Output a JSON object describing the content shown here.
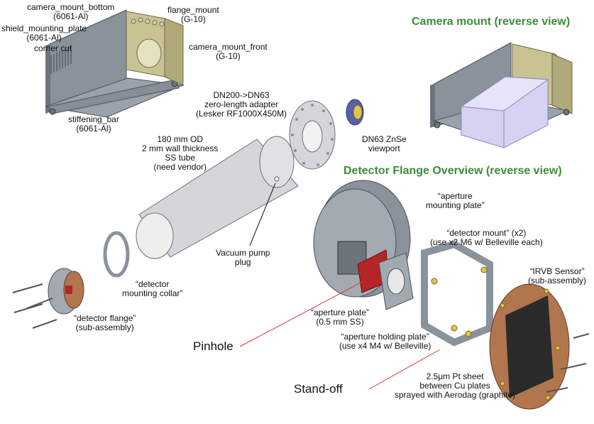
{
  "headings": {
    "camera_mount": "Camera mount (reverse view)",
    "detector_flange": "Detector Flange Overview (reverse view)"
  },
  "labels": {
    "camera_mount_bottom": [
      "camera_mount_bottom",
      "(6061-Al)"
    ],
    "flange_mount": [
      "flange_mount",
      "(G-10)"
    ],
    "shield_mounting_plate": [
      "shield_mounting_plate",
      "(6061-Al)"
    ],
    "corner_cut": [
      "corner cut"
    ],
    "camera_mount_front": [
      "camera_mount_front",
      "(G-10)"
    ],
    "stiffening_bar": [
      "stiffening_bar",
      "(6061-Al)"
    ],
    "adapter": [
      "DN200->DN63",
      "zero-length adapter",
      "(Lesker RF1000X450M)"
    ],
    "viewport": [
      "DN63 ZnSe",
      "viewport"
    ],
    "tube": [
      "180 mm OD",
      "2 mm wall thickness",
      "SS tube",
      "(need vendor)"
    ],
    "pump_plug": [
      "Vacuum pump",
      "plug"
    ],
    "mounting_collar": [
      "“detector",
      "mounting collar”"
    ],
    "detector_flange": [
      "“detector flange”",
      "(sub-assembly)"
    ],
    "aperture_mounting_plate": [
      "“aperture",
      "mounting plate”"
    ],
    "detector_mount": [
      "“detector mount” (x2)",
      "(use x2 M6 w/ Belleville each)"
    ],
    "irvb_sensor": [
      "“IRVB Sensor”",
      "(sub-assembly)"
    ],
    "aperture_plate": [
      "“aperture plate”",
      "(0.5 mm SS)"
    ],
    "aperture_holding_plate": [
      "“aperture holding plate”",
      "(use x4 M4 w/ Belleville)"
    ],
    "pt_sheet": [
      "2.5μm Pt sheet",
      "between Cu plates",
      "sprayed with Aerodag (graphite)"
    ]
  },
  "callouts": {
    "pinhole": "Pinhole",
    "standoff": "Stand-off"
  },
  "colors": {
    "heading_green": "#3f8c3a",
    "metal_gray": "#8a929c",
    "g10_tan": "#c9c293",
    "copper": "#b2764f",
    "aperture_red": "#b52525",
    "camera_lavender": "#d6d2f2",
    "callout_red": "#d43a3a"
  }
}
